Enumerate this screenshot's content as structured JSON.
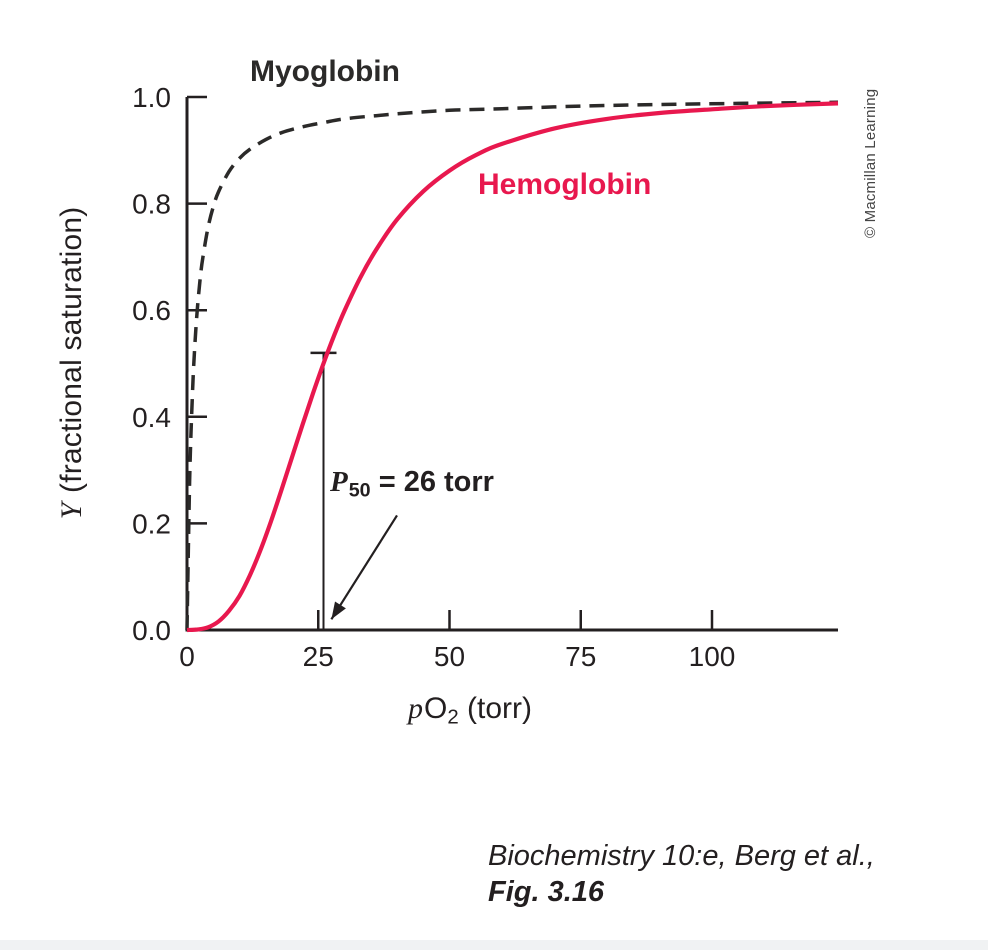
{
  "figure": {
    "credit_vertical": "© Macmillan Learning",
    "caption_line1": "Biochemistry 10:e, Berg et al.,",
    "caption_line2": "Fig. 3.16"
  },
  "chart_data": {
    "type": "line",
    "title": "",
    "xlabel_parts": {
      "italic": "p",
      "main": "O",
      "sub": "2",
      "rest": " (torr)"
    },
    "ylabel_parts": {
      "italic": "Y",
      "rest": " (fractional saturation)"
    },
    "xlim": [
      0,
      124
    ],
    "ylim": [
      0,
      1.0
    ],
    "x_ticks": [
      0,
      25,
      50,
      75,
      100
    ],
    "x_tick_labels": [
      "0",
      "25",
      "50",
      "75",
      "100"
    ],
    "y_ticks": [
      0.0,
      0.2,
      0.4,
      0.6,
      0.8,
      1.0
    ],
    "y_tick_labels": [
      "0.0",
      "0.2",
      "0.4",
      "0.6",
      "0.8",
      "1.0"
    ],
    "grid": false,
    "legend": "none",
    "axis_color": "#231f20",
    "series": [
      {
        "name": "Myoglobin",
        "color": "#2b2a29",
        "style": "dashed",
        "points": [
          [
            0,
            0
          ],
          [
            0.5,
            0.278
          ],
          [
            1,
            0.435
          ],
          [
            1.5,
            0.536
          ],
          [
            2,
            0.606
          ],
          [
            2.5,
            0.658
          ],
          [
            3,
            0.698
          ],
          [
            4,
            0.755
          ],
          [
            5,
            0.794
          ],
          [
            6,
            0.822
          ],
          [
            8,
            0.86
          ],
          [
            10,
            0.885
          ],
          [
            12,
            0.902
          ],
          [
            15,
            0.92
          ],
          [
            18,
            0.933
          ],
          [
            22,
            0.944
          ],
          [
            26,
            0.952
          ],
          [
            30,
            0.959
          ],
          [
            36,
            0.965
          ],
          [
            42,
            0.97
          ],
          [
            50,
            0.975
          ],
          [
            60,
            0.978
          ],
          [
            75,
            0.983
          ],
          [
            90,
            0.986
          ],
          [
            105,
            0.988
          ],
          [
            124,
            0.99
          ]
        ]
      },
      {
        "name": "Hemoglobin",
        "color": "#e8184e",
        "style": "solid",
        "points": [
          [
            0,
            0
          ],
          [
            2,
            0.001
          ],
          [
            4,
            0.005
          ],
          [
            6,
            0.016
          ],
          [
            8,
            0.036
          ],
          [
            10,
            0.064
          ],
          [
            12,
            0.103
          ],
          [
            14,
            0.15
          ],
          [
            16,
            0.204
          ],
          [
            18,
            0.263
          ],
          [
            20,
            0.324
          ],
          [
            22,
            0.385
          ],
          [
            24,
            0.444
          ],
          [
            26,
            0.5
          ],
          [
            28,
            0.552
          ],
          [
            30,
            0.599
          ],
          [
            33,
            0.661
          ],
          [
            36,
            0.713
          ],
          [
            40,
            0.77
          ],
          [
            45,
            0.823
          ],
          [
            50,
            0.862
          ],
          [
            55,
            0.891
          ],
          [
            60,
            0.912
          ],
          [
            70,
            0.941
          ],
          [
            80,
            0.959
          ],
          [
            90,
            0.97
          ],
          [
            100,
            0.977
          ],
          [
            110,
            0.983
          ],
          [
            124,
            0.988
          ]
        ]
      }
    ],
    "annotation": {
      "label_italic": "P",
      "label_sub": "50",
      "label_rest": " = 26 torr",
      "p50_value_torr": 26,
      "marker": {
        "x": 26,
        "y_top": 0.52
      },
      "arrow": {
        "from": [
          40,
          0.215
        ],
        "to": [
          27.5,
          0.02
        ]
      }
    }
  }
}
